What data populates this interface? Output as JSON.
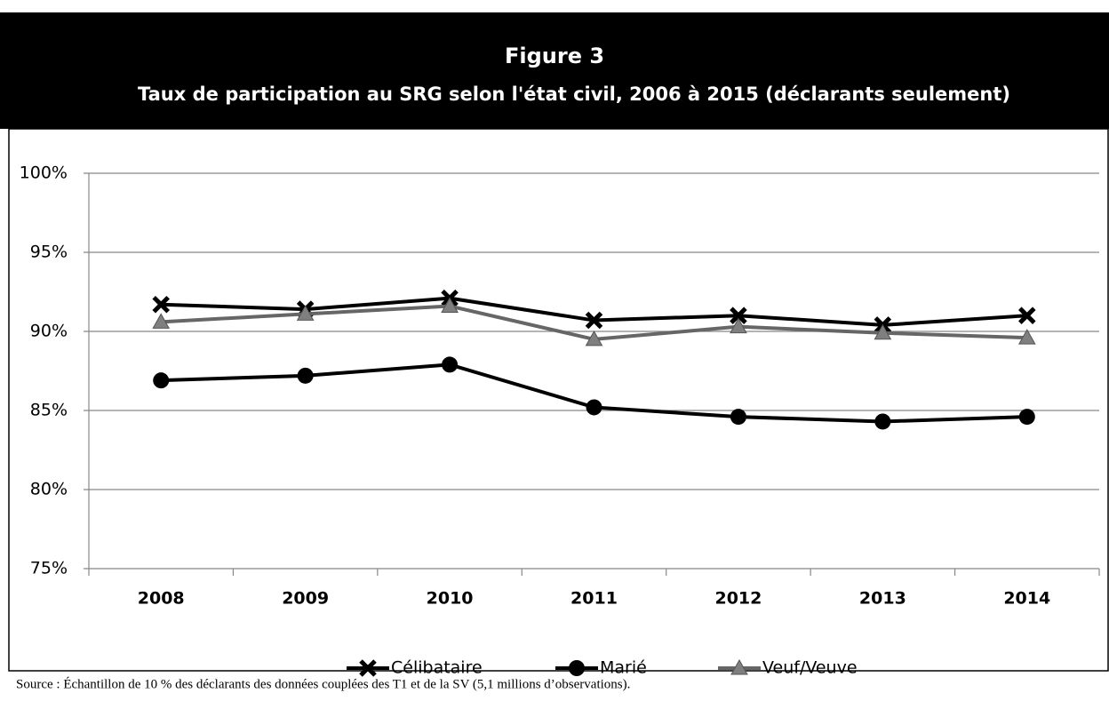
{
  "chart_data": {
    "type": "line",
    "title": "Figure 3",
    "subtitle": "Taux de participation au SRG selon l'état civil, 2006 à 2015 (déclarants seulement)",
    "categories": [
      "2008",
      "2009",
      "2010",
      "2011",
      "2012",
      "2013",
      "2014"
    ],
    "series": [
      {
        "name": "Célibataire",
        "color": "#000000",
        "marker": "x",
        "values": [
          91.7,
          91.4,
          92.1,
          90.7,
          91.0,
          90.4,
          91.0
        ]
      },
      {
        "name": "Marié",
        "color": "#000000",
        "marker": "circle",
        "values": [
          86.9,
          87.2,
          87.9,
          85.2,
          84.6,
          84.3,
          84.6
        ]
      },
      {
        "name": "Veuf/Veuve",
        "color": "#7f7f7f",
        "marker": "triangle",
        "values": [
          90.6,
          91.1,
          91.6,
          89.5,
          90.3,
          89.9,
          89.6
        ]
      }
    ],
    "ylim": [
      75,
      100
    ],
    "yticks": [
      {
        "value": 75,
        "label": "75%"
      },
      {
        "value": 80,
        "label": "80%"
      },
      {
        "value": 85,
        "label": "85%"
      },
      {
        "value": 90,
        "label": "90%"
      },
      {
        "value": 95,
        "label": "95%"
      },
      {
        "value": 100,
        "label": "100%"
      }
    ],
    "grid": true,
    "legend": "bottom",
    "source": "Source : Échantillon de 10 % des déclarants des données couplées des T1 et de la SV (5,1 millions d’observations)."
  }
}
